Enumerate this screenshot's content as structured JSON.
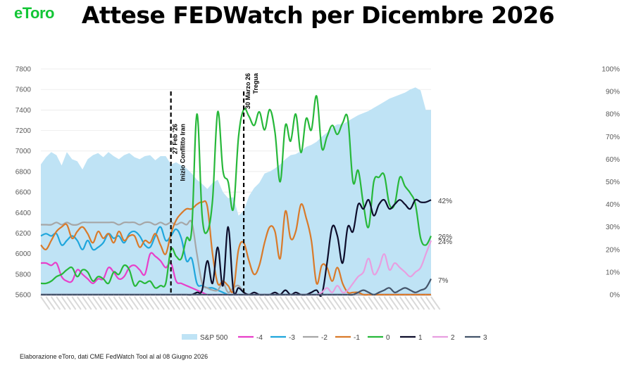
{
  "logo": "eToro",
  "title": "Attese FEDWatch per Dicembre 2026",
  "source": "Elaborazione eToro, dati CME FedWatch Tool al al 08 Giugno 2026",
  "colors": {
    "S&P 500": "#bfe3f5",
    "-4": "#e83fc9",
    "-3": "#1fa6dc",
    "-2": "#a6a6a6",
    "-1": "#d97a2a",
    "0": "#27b83a",
    "1": "#0d0d2b",
    "2": "#e89ee0",
    "3": "#44546a"
  },
  "chart_data": {
    "type": "line",
    "title": "Attese FEDWatch per Dicembre 2026",
    "y_left": {
      "ticks": [
        "5600",
        "5800",
        "6000",
        "6200",
        "6400",
        "6600",
        "6800",
        "7000",
        "7200",
        "7400",
        "7600",
        "7800"
      ],
      "range": [
        5600,
        7800
      ]
    },
    "y_right": {
      "ticks": [
        "0%",
        "10%",
        "20%",
        "30%",
        "40%",
        "50%",
        "60%",
        "70%",
        "80%",
        "90%",
        "100%"
      ],
      "range": [
        0,
        100
      ]
    },
    "legend": [
      "S&P 500",
      "-4",
      "-3",
      "-2",
      "-1",
      "0",
      "1",
      "2",
      "3"
    ],
    "legend_position": "bottom",
    "annotations": [
      {
        "index": 25,
        "lines": [
          "27 Feb '26",
          "Inizio Conflitto Iran"
        ]
      },
      {
        "index": 39,
        "lines": [
          "30 Marzo 26",
          "Tregua"
        ]
      }
    ],
    "end_labels": [
      "42%",
      "26%",
      "24%",
      "7%"
    ],
    "area_series": {
      "name": "S&P 500",
      "axis": "left",
      "values": [
        6870,
        6940,
        6990,
        6960,
        6860,
        6990,
        6920,
        6900,
        6820,
        6920,
        6960,
        6980,
        6940,
        6990,
        6950,
        6920,
        6960,
        6980,
        6940,
        6920,
        6950,
        6960,
        6910,
        6950,
        6950,
        6870,
        6890,
        6860,
        6830,
        6780,
        6720,
        6680,
        6630,
        6690,
        6720,
        6600,
        6540,
        6550,
        6370,
        6420,
        6560,
        6640,
        6690,
        6780,
        6800,
        6830,
        6870,
        6920,
        6960,
        6970,
        7000,
        7040,
        7060,
        7090,
        7140,
        7180,
        7230,
        7260,
        7260,
        7290,
        7320,
        7350,
        7370,
        7390,
        7420,
        7450,
        7480,
        7510,
        7530,
        7550,
        7570,
        7600,
        7620,
        7590,
        7400,
        7400
      ]
    },
    "series": [
      {
        "name": "-4",
        "values": [
          14,
          14,
          13,
          14,
          8,
          6,
          6,
          11,
          9,
          7,
          5,
          7,
          7,
          12,
          10,
          7,
          8,
          12,
          13,
          11,
          9,
          18,
          17,
          15,
          12,
          14,
          6,
          5,
          4,
          3,
          2,
          1,
          0,
          0,
          0,
          0,
          0,
          0,
          0,
          0,
          0,
          0,
          0,
          0,
          0,
          0,
          0,
          0,
          0,
          0,
          0,
          0,
          0,
          0,
          0,
          0,
          0,
          0,
          0,
          0,
          0,
          0,
          0,
          0,
          0,
          0,
          0,
          0,
          0,
          0,
          0,
          0,
          0,
          0,
          0,
          0
        ]
      },
      {
        "name": "-3",
        "values": [
          26,
          27,
          26,
          27,
          22,
          24,
          26,
          24,
          20,
          24,
          20,
          21,
          23,
          27,
          25,
          26,
          23,
          27,
          28,
          26,
          22,
          21,
          26,
          30,
          24,
          26,
          29,
          25,
          15,
          16,
          5,
          4,
          3,
          3,
          2,
          1,
          0,
          0,
          0,
          0,
          0,
          0,
          0,
          0,
          0,
          0,
          0,
          0,
          0,
          0,
          0,
          0,
          0,
          0,
          0,
          0,
          0,
          0,
          0,
          0,
          0,
          0,
          0,
          0,
          0,
          0,
          0,
          0,
          0,
          0,
          0,
          0,
          0,
          0,
          0,
          0
        ]
      },
      {
        "name": "-2",
        "values": [
          31,
          31,
          31,
          32,
          31,
          32,
          31,
          31,
          32,
          32,
          32,
          32,
          32,
          32,
          32,
          31,
          32,
          32,
          32,
          31,
          32,
          32,
          31,
          32,
          31,
          32,
          31,
          32,
          31,
          32,
          18,
          5,
          3,
          2,
          2,
          5,
          1,
          3,
          4,
          1,
          0,
          0,
          0,
          0,
          0,
          0,
          0,
          0,
          0,
          0,
          0,
          0,
          0,
          0,
          0,
          0,
          0,
          0,
          0,
          0,
          0,
          0,
          0,
          0,
          0,
          0,
          0,
          0,
          0,
          0,
          0,
          0,
          0,
          0,
          0,
          0
        ]
      },
      {
        "name": "-1",
        "values": [
          22,
          20,
          24,
          28,
          30,
          31,
          25,
          28,
          30,
          27,
          23,
          28,
          25,
          27,
          23,
          28,
          24,
          26,
          26,
          21,
          24,
          23,
          27,
          22,
          18,
          27,
          33,
          36,
          38,
          38,
          40,
          41,
          39,
          18,
          5,
          6,
          4,
          2,
          20,
          23,
          15,
          9,
          13,
          23,
          30,
          28,
          16,
          37,
          25,
          28,
          40,
          34,
          24,
          5,
          13,
          12,
          6,
          12,
          5,
          1,
          1,
          1,
          0,
          0,
          0,
          0,
          0,
          0,
          0,
          0,
          0,
          0,
          0,
          0,
          0,
          0
        ]
      },
      {
        "name": "0",
        "values": [
          5,
          5,
          6,
          8,
          9,
          11,
          12,
          8,
          11,
          10,
          6,
          8,
          7,
          5,
          10,
          9,
          13,
          11,
          4,
          6,
          5,
          6,
          3,
          4,
          5,
          20,
          17,
          16,
          25,
          29,
          80,
          35,
          28,
          42,
          81,
          55,
          50,
          38,
          70,
          82,
          79,
          75,
          81,
          73,
          82,
          72,
          50,
          75,
          68,
          80,
          63,
          78,
          73,
          88,
          65,
          70,
          75,
          71,
          76,
          78,
          50,
          55,
          40,
          30,
          50,
          52,
          53,
          40,
          40,
          52,
          48,
          45,
          40,
          25,
          22,
          26
        ]
      },
      {
        "name": "1",
        "values": [
          0,
          0,
          0,
          0,
          0,
          0,
          0,
          0,
          0,
          0,
          0,
          0,
          0,
          0,
          0,
          0,
          0,
          0,
          0,
          0,
          0,
          0,
          0,
          0,
          0,
          0,
          0,
          0,
          0,
          0,
          1,
          2,
          15,
          5,
          21,
          4,
          30,
          2,
          3,
          1,
          0,
          1,
          0,
          0,
          0,
          1,
          0,
          2,
          0,
          1,
          0,
          0,
          1,
          2,
          0,
          14,
          30,
          26,
          14,
          30,
          28,
          40,
          38,
          42,
          35,
          40,
          42,
          38,
          40,
          42,
          40,
          38,
          42,
          41,
          41,
          42
        ]
      },
      {
        "name": "2",
        "values": [
          0,
          0,
          0,
          0,
          0,
          0,
          0,
          0,
          0,
          0,
          0,
          0,
          0,
          0,
          0,
          0,
          0,
          0,
          0,
          0,
          0,
          0,
          0,
          0,
          0,
          0,
          0,
          0,
          0,
          0,
          0,
          0,
          0,
          0,
          0,
          0,
          0,
          0,
          0,
          0,
          0,
          0,
          0,
          0,
          0,
          0,
          0,
          0,
          0,
          0,
          0,
          0,
          0,
          0,
          1,
          3,
          1,
          4,
          1,
          2,
          5,
          8,
          10,
          16,
          9,
          12,
          18,
          11,
          14,
          12,
          10,
          8,
          10,
          12,
          18,
          24
        ]
      },
      {
        "name": "3",
        "values": [
          0,
          0,
          0,
          0,
          0,
          0,
          0,
          0,
          0,
          0,
          0,
          0,
          0,
          0,
          0,
          0,
          0,
          0,
          0,
          0,
          0,
          0,
          0,
          0,
          0,
          0,
          0,
          0,
          0,
          0,
          0,
          0,
          0,
          0,
          0,
          0,
          0,
          0,
          0,
          0,
          0,
          0,
          0,
          0,
          0,
          0,
          0,
          0,
          0,
          0,
          0,
          0,
          0,
          0,
          0,
          0,
          0,
          0,
          0,
          0,
          0,
          1,
          2,
          1,
          0,
          1,
          2,
          3,
          1,
          2,
          3,
          2,
          1,
          2,
          3,
          7
        ]
      }
    ]
  }
}
